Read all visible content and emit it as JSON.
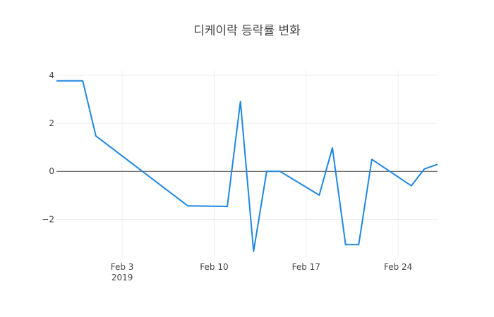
{
  "chart_data": {
    "type": "line",
    "title": "디케이락 등락률 변화",
    "xlabel": "",
    "ylabel": "",
    "x_tick_labels": [
      "Feb 3",
      "Feb 10",
      "Feb 17",
      "Feb 24"
    ],
    "x_tick_dates": [
      "2019-02-03",
      "2019-02-10",
      "2019-02-17",
      "2019-02-24"
    ],
    "x_year_label": "2019",
    "y_ticks": [
      4,
      2,
      0,
      -2
    ],
    "y_tick_labels": [
      "4",
      "2",
      "0",
      "−2"
    ],
    "xlim": [
      "2019-01-29",
      "2019-02-27"
    ],
    "ylim": [
      -3.6,
      4.2
    ],
    "zero_line": true,
    "grid": true,
    "line_color": "#1f87e0",
    "series": [
      {
        "x": [
          "2019-01-29",
          "2019-01-30",
          "2019-01-31",
          "2019-02-01",
          "2019-02-08",
          "2019-02-11",
          "2019-02-12",
          "2019-02-13",
          "2019-02-14",
          "2019-02-15",
          "2019-02-18",
          "2019-02-19",
          "2019-02-20",
          "2019-02-21",
          "2019-02-22",
          "2019-02-25",
          "2019-02-26",
          "2019-02-27"
        ],
        "y": [
          3.77,
          3.77,
          3.77,
          1.47,
          -1.44,
          -1.46,
          2.91,
          -3.33,
          0.0,
          0.0,
          -0.99,
          0.98,
          -3.05,
          -3.05,
          0.5,
          -0.6,
          0.1,
          0.29
        ]
      }
    ]
  }
}
